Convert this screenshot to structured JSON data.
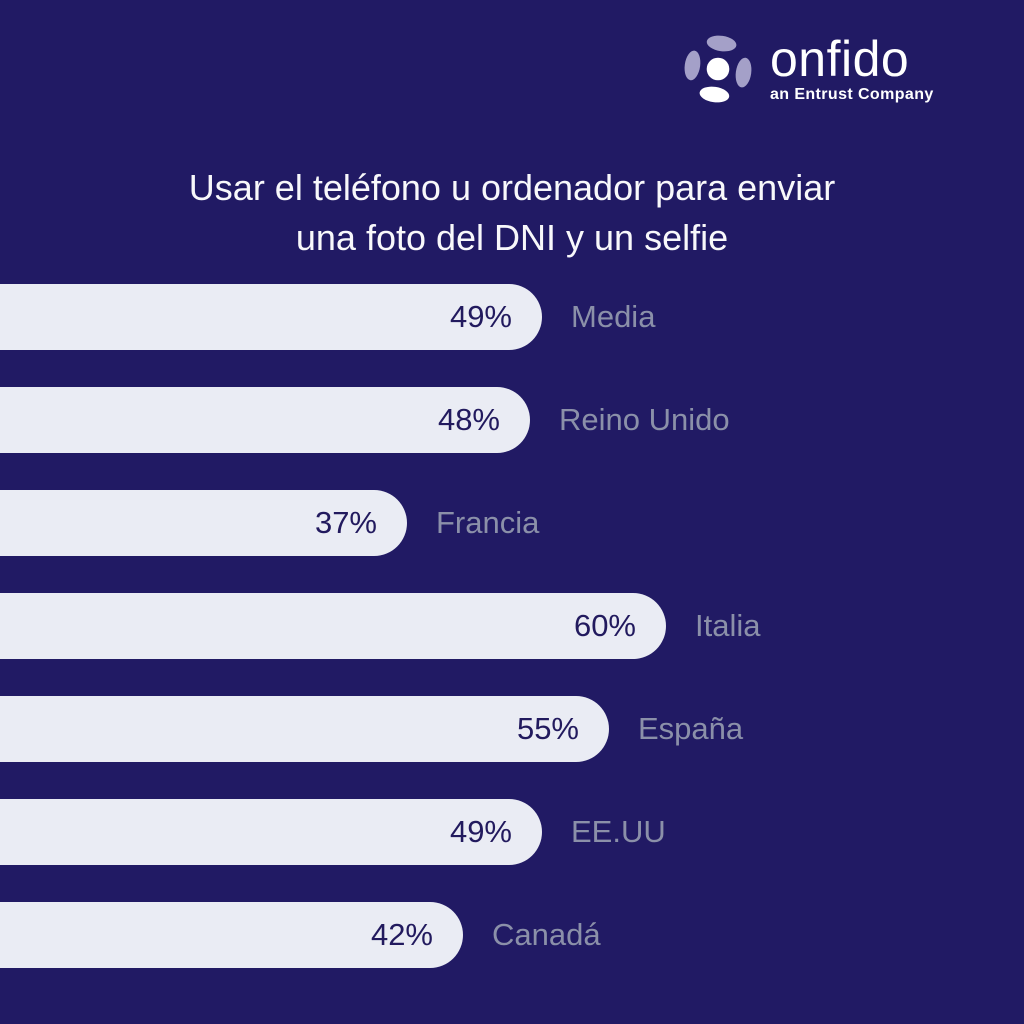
{
  "logo": {
    "brand": "onfido",
    "tagline": "an Entrust Company",
    "icon_name": "onfido-shutter-icon"
  },
  "title_lines": [
    "Usar el teléfono u ordenador para enviar",
    "una foto del DNI y un selfie"
  ],
  "chart_data": {
    "type": "bar",
    "orientation": "horizontal",
    "title": "Usar el teléfono u ordenador para enviar una foto del DNI y un selfie",
    "categories": [
      "Media",
      "Reino Unido",
      "Francia",
      "Italia",
      "España",
      "EE.UU",
      "Canadá"
    ],
    "values": [
      49,
      48,
      37,
      60,
      55,
      49,
      42
    ],
    "value_labels": [
      "49%",
      "48%",
      "37%",
      "60%",
      "55%",
      "49%",
      "42%"
    ],
    "unit": "%",
    "xlim": [
      0,
      90
    ],
    "grid": false,
    "legend": false,
    "value_label_position": "inside-bar-right",
    "category_label_position": "right-of-bar",
    "bars_clipped_at_left_edge": true
  },
  "colors": {
    "background": "#211a64",
    "bar_fill": "#eaecf4",
    "value_text": "#221a5e",
    "category_text": "#8b90a9",
    "title_text": "#f8f8fb",
    "logo_lavender": "#a4a0c8",
    "logo_white": "#ffffff"
  }
}
